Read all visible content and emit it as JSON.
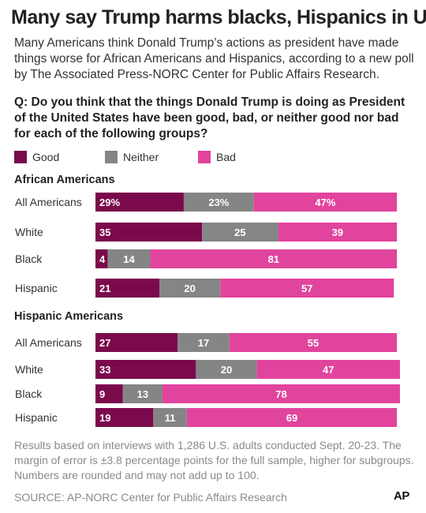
{
  "header": {
    "title": "Many say Trump harms blacks, Hispanics in US",
    "subtitle": "Many Americans think Donald Trump’s actions as president have made things worse for African Americans and Hispanics, according to a new poll by The Associated Press-NORC Center for Public Affairs Research.",
    "question": "Q: Do you think that the things Donald Trump is doing as President of the United States have been good, bad, or neither good nor bad for each of the following groups?"
  },
  "footer": {
    "notes": "Results based on interviews with 1,286 U.S. adults conducted Sept. 20-23. The margin of error is ±3.8 percentage points for the full sample, higher for subgroups. Numbers are rounded and may not add up to 100.",
    "source": "SOURCE: AP-NORC Center for Public Affairs Research",
    "logo_text": "AP"
  },
  "colors": {
    "good": "#7b0a4c",
    "neither": "#858585",
    "bad": "#e1449d"
  },
  "chart_data": {
    "type": "bar",
    "stacked": true,
    "orientation": "horizontal",
    "legend": [
      {
        "key": "good",
        "label": "Good"
      },
      {
        "key": "neither",
        "label": "Neither"
      },
      {
        "key": "bad",
        "label": "Bad"
      }
    ],
    "legend_position": "top-left",
    "grid": false,
    "groups": [
      {
        "title": "African Americans",
        "rows": [
          {
            "label": "All Americans",
            "good": 29,
            "neither": 23,
            "bad": 47,
            "good_label": "29%",
            "neither_label": "23%",
            "bad_label": "47%"
          },
          {
            "label": "White",
            "good": 35,
            "neither": 25,
            "bad": 39,
            "good_label": "35",
            "neither_label": "25",
            "bad_label": "39"
          },
          {
            "label": "Black",
            "good": 4,
            "neither": 14,
            "bad": 81,
            "good_label": "4",
            "neither_label": "14",
            "bad_label": "81"
          },
          {
            "label": "Hispanic",
            "good": 21,
            "neither": 20,
            "bad": 57,
            "good_label": "21",
            "neither_label": "20",
            "bad_label": "57"
          }
        ]
      },
      {
        "title": "Hispanic Americans",
        "rows": [
          {
            "label": "All Americans",
            "good": 27,
            "neither": 17,
            "bad": 55,
            "good_label": "27",
            "neither_label": "17",
            "bad_label": "55"
          },
          {
            "label": "White",
            "good": 33,
            "neither": 20,
            "bad": 47,
            "good_label": "33",
            "neither_label": "20",
            "bad_label": "47"
          },
          {
            "label": "Black",
            "good": 9,
            "neither": 13,
            "bad": 78,
            "good_label": "9",
            "neither_label": "13",
            "bad_label": "78"
          },
          {
            "label": "Hispanic",
            "good": 19,
            "neither": 11,
            "bad": 69,
            "good_label": "19",
            "neither_label": "11",
            "bad_label": "69"
          }
        ]
      }
    ]
  }
}
